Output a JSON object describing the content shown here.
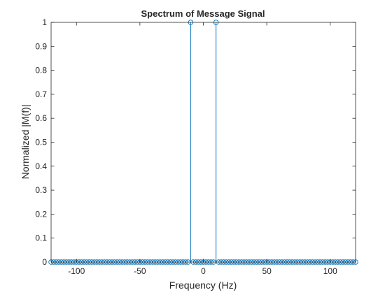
{
  "chart_data": {
    "type": "stem",
    "title": "Spectrum of Message Signal",
    "xlabel": "Frequency (Hz)",
    "ylabel": "Normalized |M(f)|",
    "xlim": [
      -120,
      120
    ],
    "ylim": [
      0,
      1
    ],
    "x_ticks": [
      -100,
      -50,
      0,
      50,
      100
    ],
    "y_ticks": [
      0,
      0.1,
      0.2,
      0.3,
      0.4,
      0.5,
      0.6,
      0.7,
      0.8,
      0.9,
      1
    ],
    "grid": false,
    "series_color": "#0072BD",
    "x_step": 2,
    "nonzero_points": [
      {
        "x": -10,
        "y": 1
      },
      {
        "x": 10,
        "y": 1
      }
    ],
    "baseline_value": 0
  }
}
